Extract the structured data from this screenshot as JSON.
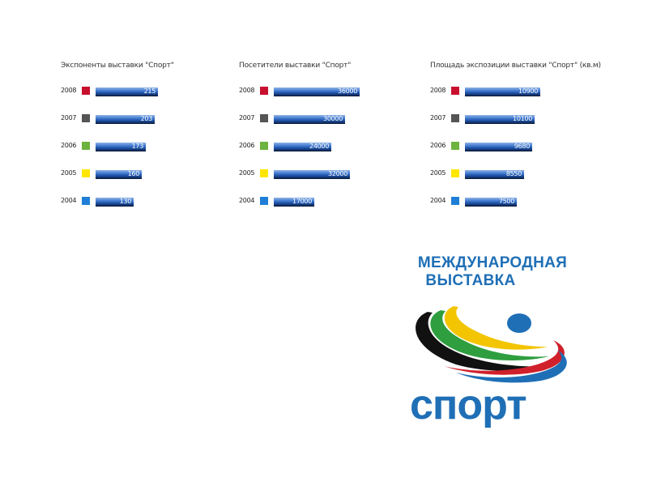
{
  "chart_data": [
    {
      "type": "bar",
      "title": "Экспоненты выставки \"Спорт\"",
      "categories": [
        "2008",
        "2007",
        "2006",
        "2005",
        "2004"
      ],
      "values": [
        215,
        203,
        173,
        160,
        130
      ],
      "value_labels": [
        "215",
        "203",
        "173",
        "160",
        "130"
      ],
      "category_colors": [
        "#c8102e",
        "#555555",
        "#6cb33f",
        "#ffe600",
        "#1f7fd6"
      ]
    },
    {
      "type": "bar",
      "title": "Посетители выставки \"Спорт\"",
      "categories": [
        "2008",
        "2007",
        "2006",
        "2005",
        "2004"
      ],
      "values": [
        36000,
        30000,
        24000,
        32000,
        17000
      ],
      "value_labels": [
        "36000",
        "30000",
        "24000",
        "32000",
        "17000"
      ],
      "category_colors": [
        "#c8102e",
        "#555555",
        "#6cb33f",
        "#ffe600",
        "#1f7fd6"
      ]
    },
    {
      "type": "bar",
      "title": "Площадь экспозиции выставки \"Спорт\" (кв.м)",
      "categories": [
        "2008",
        "2007",
        "2006",
        "2005",
        "2004"
      ],
      "values": [
        10900,
        10100,
        9680,
        8550,
        7500
      ],
      "value_labels": [
        "10900",
        "10100",
        "9680",
        "8550",
        "7500"
      ],
      "category_colors": [
        "#c8102e",
        "#555555",
        "#6cb33f",
        "#ffe600",
        "#1f7fd6"
      ]
    }
  ],
  "logo": {
    "line1": "МЕЖДУНАРОДНАЯ",
    "line2": "ВЫСТАВКА",
    "word": "спорт",
    "colors": {
      "text": "#1f6fb6",
      "swoosh_black": "#111111",
      "swoosh_green": "#2e9e3e",
      "swoosh_yellow": "#f2c500",
      "swoosh_red": "#d0202b",
      "swoosh_blue": "#1f6fb6"
    }
  }
}
